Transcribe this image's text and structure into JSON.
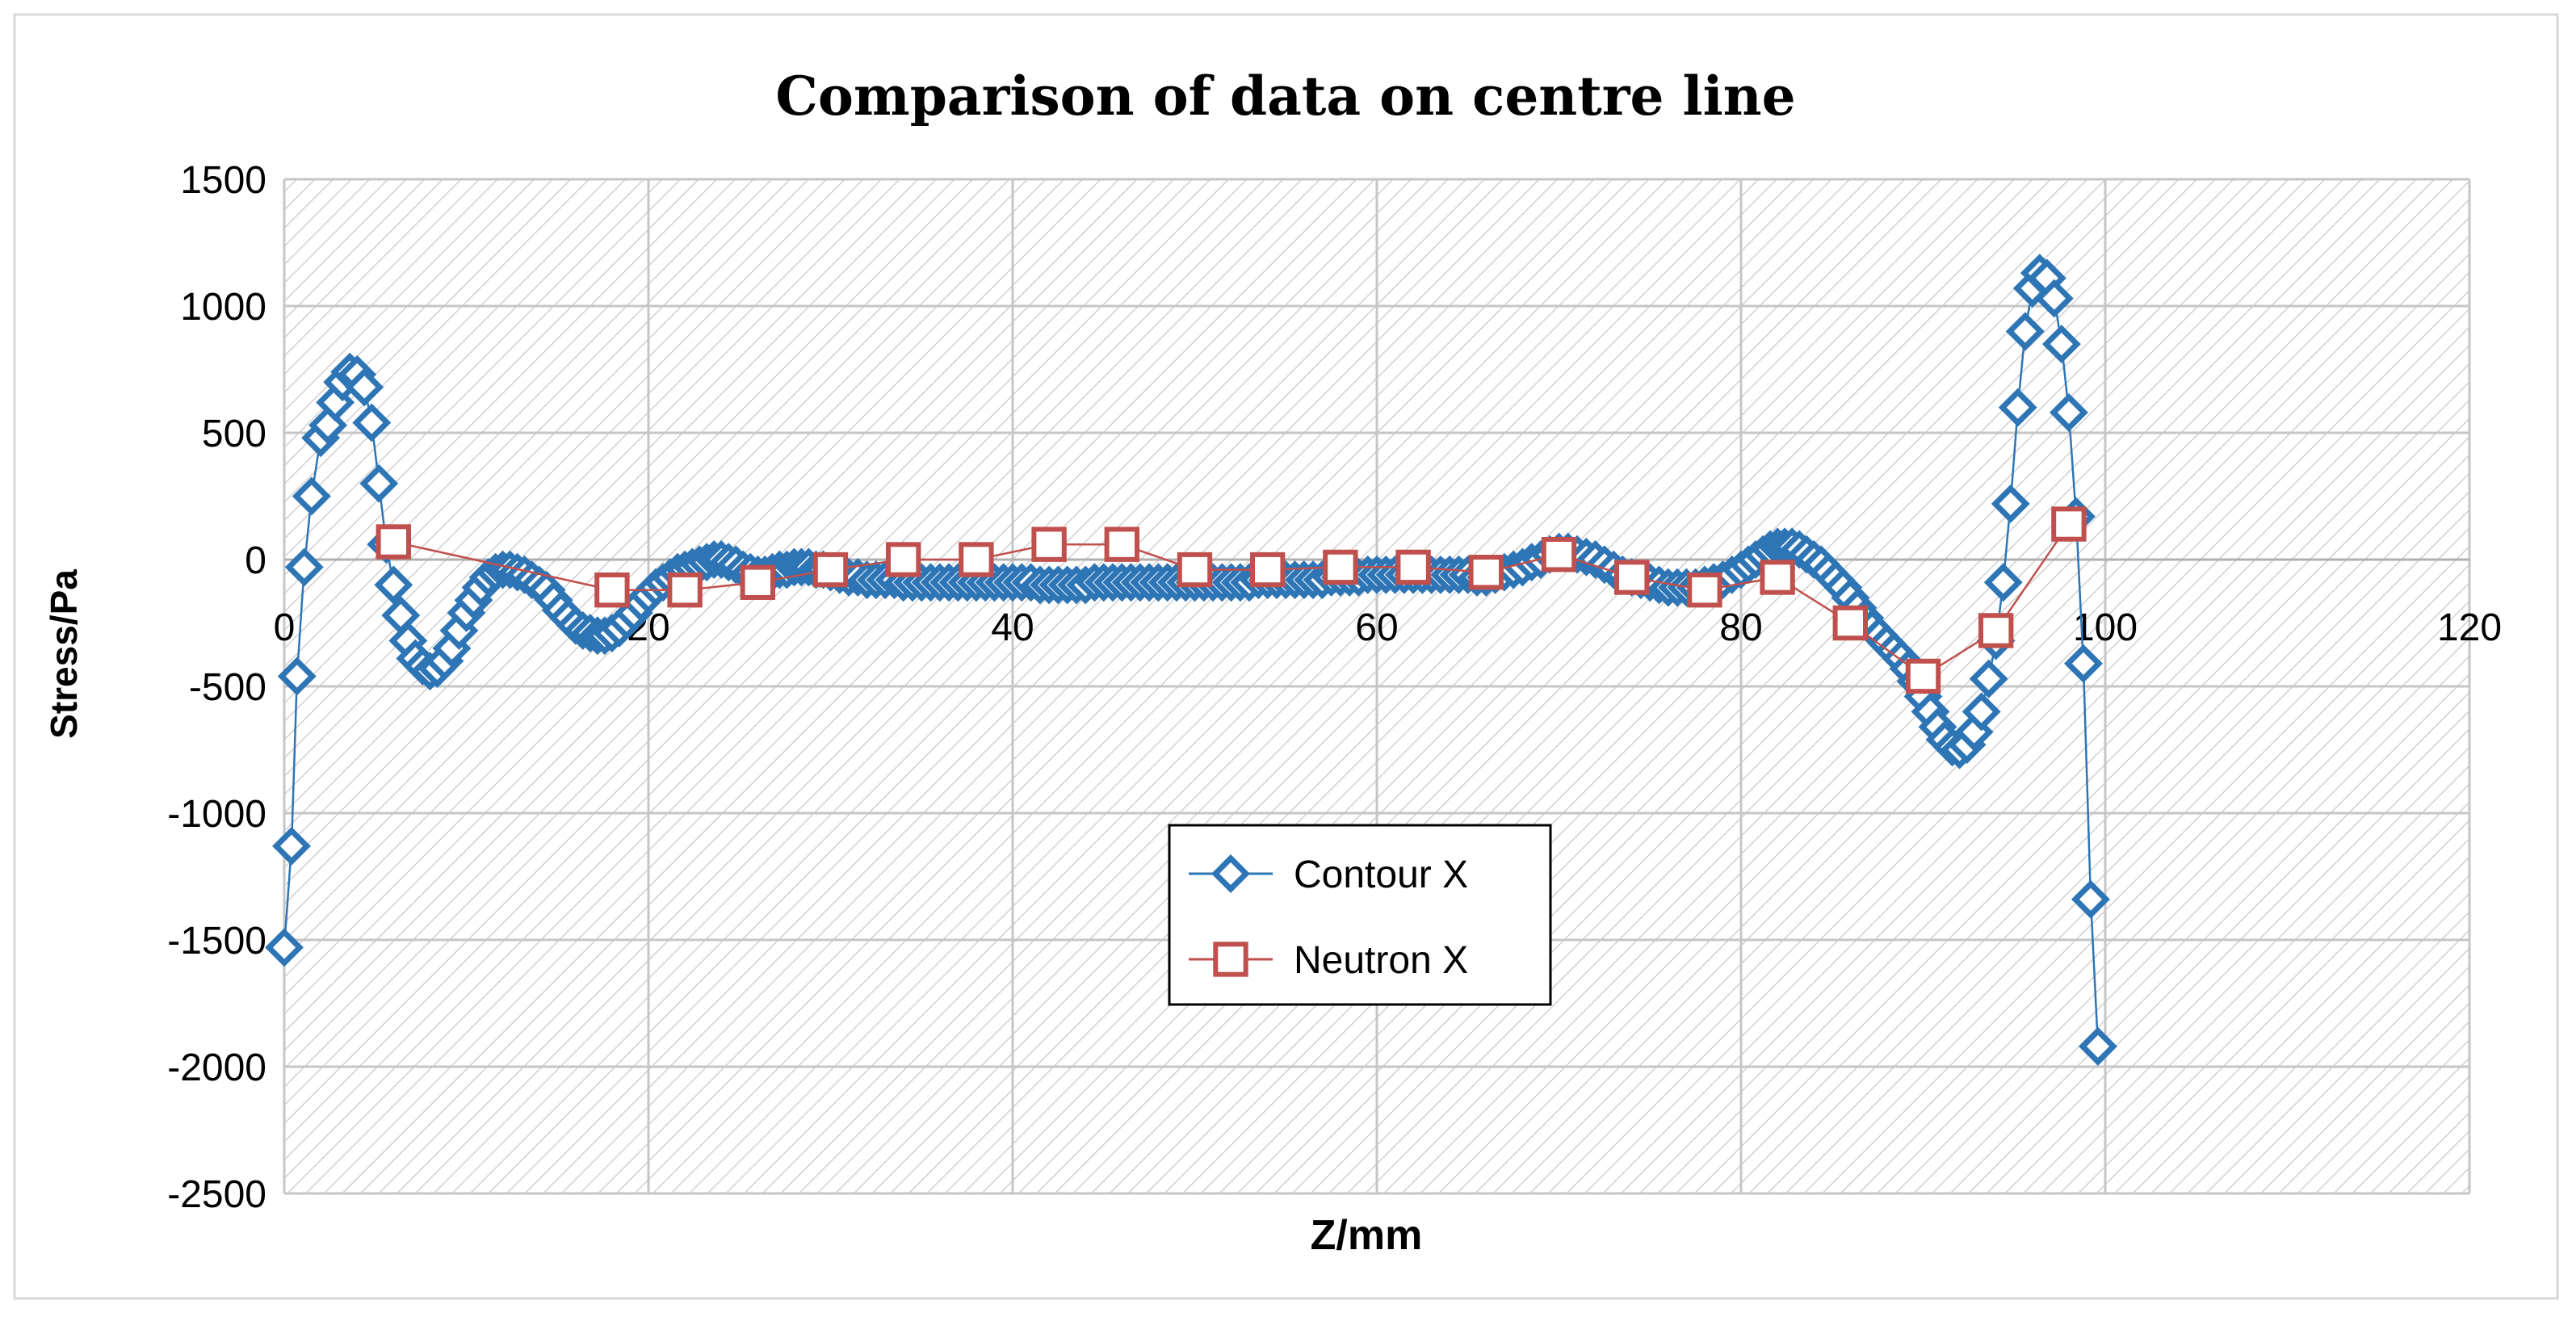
{
  "chart_data": {
    "type": "scatter",
    "title": "Comparison of data on centre line",
    "xlabel": "Z/mm",
    "ylabel": "Stress/Pa",
    "xlim": [
      0,
      120
    ],
    "ylim": [
      -2500,
      1500
    ],
    "x_ticks": [
      0,
      20,
      40,
      60,
      80,
      100,
      120
    ],
    "y_ticks": [
      1500,
      1000,
      500,
      0,
      -500,
      -1000,
      -1500,
      -2000,
      -2500
    ],
    "grid": true,
    "plot_background": "hatched",
    "legend_position": "center",
    "series": [
      {
        "name": "Contour X",
        "marker": "diamond",
        "color": "#2e75b6",
        "line": true,
        "points": [
          [
            0.0,
            -1530
          ],
          [
            0.4,
            -1130
          ],
          [
            0.7,
            -460
          ],
          [
            1.1,
            -30
          ],
          [
            1.5,
            250
          ],
          [
            2.0,
            480
          ],
          [
            2.4,
            530
          ],
          [
            2.8,
            620
          ],
          [
            3.2,
            700
          ],
          [
            3.6,
            740
          ],
          [
            4.0,
            730
          ],
          [
            4.4,
            680
          ],
          [
            4.8,
            540
          ],
          [
            5.2,
            300
          ],
          [
            5.6,
            60
          ],
          [
            6.0,
            -100
          ],
          [
            6.4,
            -220
          ],
          [
            6.8,
            -320
          ],
          [
            7.2,
            -390
          ],
          [
            7.6,
            -420
          ],
          [
            8.0,
            -440
          ],
          [
            8.4,
            -430
          ],
          [
            8.8,
            -400
          ],
          [
            9.2,
            -350
          ],
          [
            9.6,
            -280
          ],
          [
            10.0,
            -210
          ],
          [
            10.4,
            -160
          ],
          [
            10.8,
            -110
          ],
          [
            11.2,
            -70
          ],
          [
            11.6,
            -50
          ],
          [
            12.0,
            -40
          ],
          [
            12.4,
            -40
          ],
          [
            12.8,
            -50
          ],
          [
            13.2,
            -60
          ],
          [
            13.6,
            -80
          ],
          [
            14.0,
            -100
          ],
          [
            14.4,
            -120
          ],
          [
            14.8,
            -160
          ],
          [
            15.2,
            -200
          ],
          [
            15.6,
            -230
          ],
          [
            16.0,
            -260
          ],
          [
            16.4,
            -280
          ],
          [
            16.8,
            -290
          ],
          [
            17.2,
            -300
          ],
          [
            17.6,
            -300
          ],
          [
            18.0,
            -290
          ],
          [
            18.4,
            -270
          ],
          [
            18.8,
            -240
          ],
          [
            19.2,
            -210
          ],
          [
            19.6,
            -170
          ],
          [
            20.0,
            -140
          ],
          [
            20.4,
            -110
          ],
          [
            20.8,
            -90
          ],
          [
            21.2,
            -70
          ],
          [
            21.6,
            -50
          ],
          [
            22.0,
            -40
          ],
          [
            22.4,
            -30
          ],
          [
            22.8,
            -20
          ],
          [
            23.2,
            -10
          ],
          [
            23.6,
            0
          ],
          [
            24.0,
            0
          ],
          [
            24.4,
            -10
          ],
          [
            24.8,
            -20
          ],
          [
            25.2,
            -40
          ],
          [
            25.6,
            -50
          ],
          [
            26.0,
            -60
          ],
          [
            26.4,
            -60
          ],
          [
            26.8,
            -50
          ],
          [
            27.2,
            -40
          ],
          [
            27.6,
            -40
          ],
          [
            28.0,
            -30
          ],
          [
            28.4,
            -30
          ],
          [
            28.8,
            -30
          ],
          [
            29.2,
            -40
          ],
          [
            29.6,
            -40
          ],
          [
            30.0,
            -50
          ],
          [
            30.5,
            -60
          ],
          [
            31.0,
            -70
          ],
          [
            31.5,
            -70
          ],
          [
            32.0,
            -80
          ],
          [
            32.5,
            -80
          ],
          [
            33.0,
            -80
          ],
          [
            33.5,
            -80
          ],
          [
            34.0,
            -90
          ],
          [
            34.5,
            -90
          ],
          [
            35.0,
            -90
          ],
          [
            35.5,
            -90
          ],
          [
            36.0,
            -90
          ],
          [
            36.5,
            -90
          ],
          [
            37.0,
            -90
          ],
          [
            37.5,
            -90
          ],
          [
            38.0,
            -90
          ],
          [
            38.5,
            -90
          ],
          [
            39.0,
            -90
          ],
          [
            39.5,
            -90
          ],
          [
            40.0,
            -90
          ],
          [
            40.5,
            -90
          ],
          [
            41.0,
            -90
          ],
          [
            41.5,
            -100
          ],
          [
            42.0,
            -100
          ],
          [
            42.5,
            -100
          ],
          [
            43.0,
            -100
          ],
          [
            43.5,
            -100
          ],
          [
            44.0,
            -100
          ],
          [
            44.5,
            -90
          ],
          [
            45.0,
            -90
          ],
          [
            45.5,
            -90
          ],
          [
            46.0,
            -90
          ],
          [
            46.5,
            -90
          ],
          [
            47.0,
            -90
          ],
          [
            47.5,
            -90
          ],
          [
            48.0,
            -90
          ],
          [
            48.5,
            -90
          ],
          [
            49.0,
            -90
          ],
          [
            49.5,
            -90
          ],
          [
            50.0,
            -90
          ],
          [
            50.5,
            -90
          ],
          [
            51.0,
            -90
          ],
          [
            51.5,
            -90
          ],
          [
            52.0,
            -90
          ],
          [
            52.5,
            -90
          ],
          [
            53.0,
            -90
          ],
          [
            53.5,
            -80
          ],
          [
            54.0,
            -80
          ],
          [
            54.5,
            -80
          ],
          [
            55.0,
            -80
          ],
          [
            55.5,
            -80
          ],
          [
            56.0,
            -80
          ],
          [
            56.5,
            -80
          ],
          [
            57.0,
            -80
          ],
          [
            57.5,
            -70
          ],
          [
            58.0,
            -70
          ],
          [
            58.5,
            -70
          ],
          [
            59.0,
            -70
          ],
          [
            59.5,
            -60
          ],
          [
            60.0,
            -60
          ],
          [
            60.5,
            -60
          ],
          [
            61.0,
            -60
          ],
          [
            61.5,
            -60
          ],
          [
            62.0,
            -60
          ],
          [
            62.5,
            -60
          ],
          [
            63.0,
            -60
          ],
          [
            63.5,
            -60
          ],
          [
            64.0,
            -60
          ],
          [
            64.5,
            -60
          ],
          [
            65.0,
            -60
          ],
          [
            65.5,
            -70
          ],
          [
            66.0,
            -70
          ],
          [
            66.5,
            -60
          ],
          [
            67.0,
            -50
          ],
          [
            67.5,
            -40
          ],
          [
            68.0,
            -30
          ],
          [
            68.5,
            -10
          ],
          [
            69.0,
            0
          ],
          [
            69.5,
            20
          ],
          [
            70.0,
            30
          ],
          [
            70.5,
            30
          ],
          [
            71.0,
            20
          ],
          [
            71.5,
            10
          ],
          [
            72.0,
            0
          ],
          [
            72.5,
            -20
          ],
          [
            73.0,
            -40
          ],
          [
            73.5,
            -60
          ],
          [
            74.0,
            -70
          ],
          [
            74.5,
            -80
          ],
          [
            75.0,
            -90
          ],
          [
            75.5,
            -100
          ],
          [
            76.0,
            -110
          ],
          [
            76.5,
            -110
          ],
          [
            77.0,
            -110
          ],
          [
            77.5,
            -110
          ],
          [
            78.0,
            -100
          ],
          [
            78.5,
            -90
          ],
          [
            79.0,
            -80
          ],
          [
            79.5,
            -60
          ],
          [
            80.0,
            -40
          ],
          [
            80.4,
            -20
          ],
          [
            80.8,
            0
          ],
          [
            81.2,
            20
          ],
          [
            81.6,
            40
          ],
          [
            82.0,
            50
          ],
          [
            82.4,
            50
          ],
          [
            82.8,
            50
          ],
          [
            83.2,
            40
          ],
          [
            83.6,
            20
          ],
          [
            84.0,
            0
          ],
          [
            84.4,
            -20
          ],
          [
            84.8,
            -50
          ],
          [
            85.2,
            -80
          ],
          [
            85.6,
            -110
          ],
          [
            86.0,
            -150
          ],
          [
            86.4,
            -190
          ],
          [
            86.8,
            -230
          ],
          [
            87.2,
            -270
          ],
          [
            87.6,
            -300
          ],
          [
            88.0,
            -330
          ],
          [
            88.4,
            -360
          ],
          [
            88.8,
            -390
          ],
          [
            89.2,
            -430
          ],
          [
            89.6,
            -480
          ],
          [
            90.0,
            -540
          ],
          [
            90.4,
            -600
          ],
          [
            90.8,
            -660
          ],
          [
            91.2,
            -710
          ],
          [
            91.6,
            -740
          ],
          [
            92.0,
            -750
          ],
          [
            92.4,
            -730
          ],
          [
            92.8,
            -680
          ],
          [
            93.2,
            -600
          ],
          [
            93.6,
            -470
          ],
          [
            94.0,
            -320
          ],
          [
            94.4,
            -90
          ],
          [
            94.8,
            220
          ],
          [
            95.2,
            600
          ],
          [
            95.6,
            900
          ],
          [
            96.0,
            1070
          ],
          [
            96.4,
            1130
          ],
          [
            96.8,
            1110
          ],
          [
            97.2,
            1030
          ],
          [
            97.6,
            850
          ],
          [
            98.0,
            580
          ],
          [
            98.4,
            170
          ],
          [
            98.8,
            -410
          ],
          [
            99.2,
            -1340
          ],
          [
            99.6,
            -1920
          ]
        ]
      },
      {
        "name": "Neutron X",
        "marker": "square",
        "color": "#c0504d",
        "line": true,
        "points": [
          [
            6,
            70
          ],
          [
            18,
            -120
          ],
          [
            22,
            -120
          ],
          [
            26,
            -90
          ],
          [
            30,
            -40
          ],
          [
            34,
            0
          ],
          [
            38,
            0
          ],
          [
            42,
            60
          ],
          [
            46,
            60
          ],
          [
            50,
            -40
          ],
          [
            54,
            -40
          ],
          [
            58,
            -30
          ],
          [
            62,
            -30
          ],
          [
            66,
            -50
          ],
          [
            70,
            20
          ],
          [
            74,
            -70
          ],
          [
            78,
            -120
          ],
          [
            82,
            -70
          ],
          [
            86,
            -250
          ],
          [
            90,
            -460
          ],
          [
            94,
            -280
          ],
          [
            98,
            140
          ]
        ]
      }
    ]
  }
}
